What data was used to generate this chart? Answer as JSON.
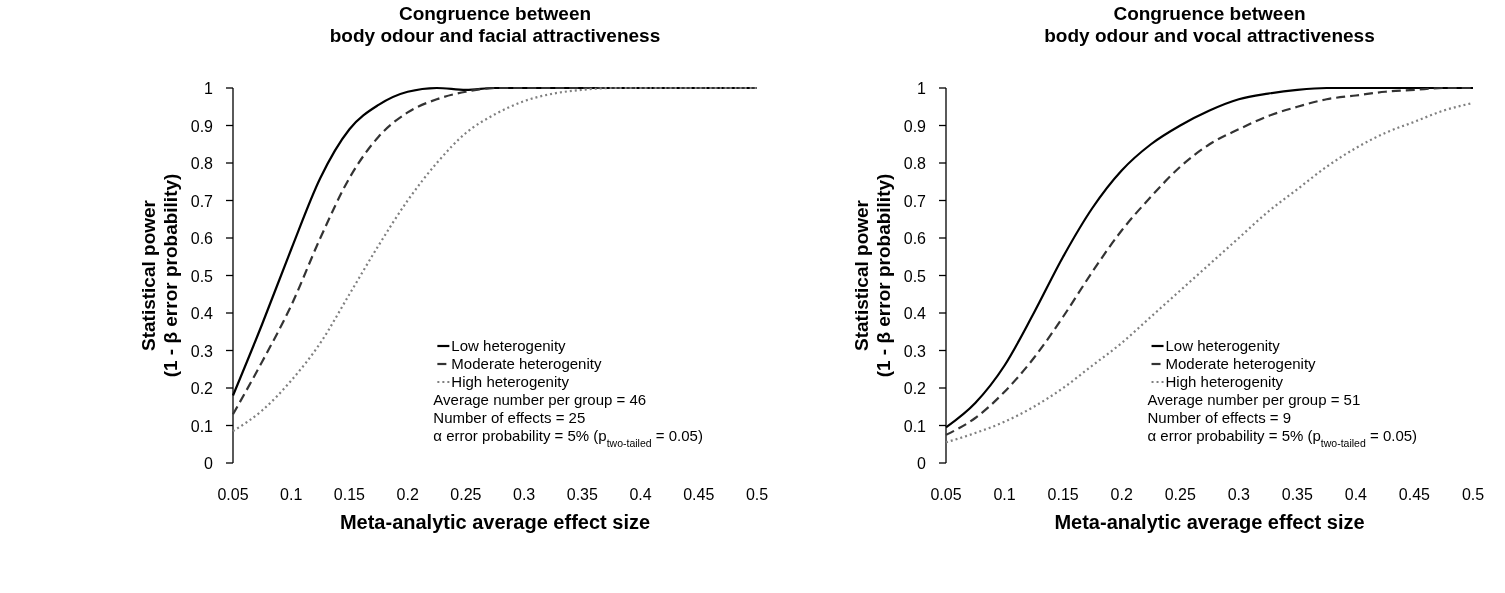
{
  "chart_data": [
    {
      "type": "line",
      "title": "Congruence between\nbody odour and facial attractiveness",
      "xlabel": "Meta-analytic average effect size",
      "ylabel": "Statistical power\n(1 - β error probability)",
      "x": [
        0.05,
        0.075,
        0.1,
        0.125,
        0.15,
        0.175,
        0.2,
        0.225,
        0.25,
        0.275,
        0.3,
        0.325,
        0.35,
        0.375,
        0.4,
        0.425,
        0.45,
        0.475,
        0.5
      ],
      "xlim": [
        0.05,
        0.5
      ],
      "xticks": [
        0.05,
        0.1,
        0.15,
        0.2,
        0.25,
        0.3,
        0.35,
        0.4,
        0.45,
        0.5
      ],
      "ylim": [
        0,
        1
      ],
      "yticks": [
        0,
        0.1,
        0.2,
        0.3,
        0.4,
        0.5,
        0.6,
        0.7,
        0.8,
        0.9,
        1
      ],
      "legend": "bottom right",
      "grid": false,
      "series": [
        {
          "name": "Low heterogenity",
          "color": "#000000",
          "line_style": "solid",
          "values": [
            0.18,
            0.37,
            0.57,
            0.76,
            0.89,
            0.955,
            0.99,
            1,
            0.995,
            1,
            1,
            1,
            1,
            1,
            1,
            1,
            1,
            1,
            1
          ]
        },
        {
          "name": "Moderate heterogenity",
          "color": "#333333",
          "line_style": "dashed",
          "values": [
            0.13,
            0.27,
            0.42,
            0.6,
            0.76,
            0.87,
            0.935,
            0.97,
            0.99,
            1,
            1,
            1,
            1,
            1,
            1,
            1,
            1,
            1,
            1
          ]
        },
        {
          "name": "High heterogenity",
          "color": "#808080",
          "line_style": "dotted",
          "values": [
            0.085,
            0.14,
            0.22,
            0.32,
            0.45,
            0.58,
            0.7,
            0.8,
            0.88,
            0.93,
            0.965,
            0.985,
            0.995,
            1,
            1,
            1,
            1,
            1,
            1
          ]
        }
      ],
      "annotations": [
        "Average number per group = 46",
        "Number of effects = 25",
        "α error probability = 5% (p$_{two-tailed}$ = 0.05)"
      ]
    },
    {
      "type": "line",
      "title": "Congruence between\nbody odour and vocal attractiveness",
      "xlabel": "Meta-analytic average effect size",
      "ylabel": "Statistical power\n(1 - β error probability)",
      "x": [
        0.05,
        0.075,
        0.1,
        0.125,
        0.15,
        0.175,
        0.2,
        0.225,
        0.25,
        0.275,
        0.3,
        0.325,
        0.35,
        0.375,
        0.4,
        0.425,
        0.45,
        0.475,
        0.5
      ],
      "xlim": [
        0.05,
        0.5
      ],
      "xticks": [
        0.05,
        0.1,
        0.15,
        0.2,
        0.25,
        0.3,
        0.35,
        0.4,
        0.45,
        0.5
      ],
      "ylim": [
        0,
        1
      ],
      "yticks": [
        0,
        0.1,
        0.2,
        0.3,
        0.4,
        0.5,
        0.6,
        0.7,
        0.8,
        0.9,
        1
      ],
      "legend": "bottom right",
      "grid": false,
      "series": [
        {
          "name": "Low heterogenity",
          "color": "#000000",
          "line_style": "solid",
          "values": [
            0.095,
            0.16,
            0.26,
            0.4,
            0.55,
            0.68,
            0.78,
            0.85,
            0.9,
            0.94,
            0.97,
            0.985,
            0.995,
            1,
            1,
            1,
            1,
            1,
            1
          ]
        },
        {
          "name": "Moderate heterogenity",
          "color": "#333333",
          "line_style": "dashed",
          "values": [
            0.075,
            0.12,
            0.19,
            0.28,
            0.39,
            0.51,
            0.62,
            0.71,
            0.79,
            0.85,
            0.89,
            0.925,
            0.95,
            0.97,
            0.98,
            0.99,
            0.995,
            1,
            1
          ]
        },
        {
          "name": "High heterogenity",
          "color": "#808080",
          "line_style": "dotted",
          "values": [
            0.055,
            0.08,
            0.11,
            0.15,
            0.2,
            0.26,
            0.32,
            0.39,
            0.46,
            0.53,
            0.6,
            0.67,
            0.73,
            0.79,
            0.84,
            0.88,
            0.91,
            0.94,
            0.96
          ]
        }
      ],
      "annotations": [
        "Average number per group = 51",
        "Number of effects = 9",
        "α error probability = 5% (p$_{two-tailed}$ = 0.05)"
      ]
    }
  ]
}
